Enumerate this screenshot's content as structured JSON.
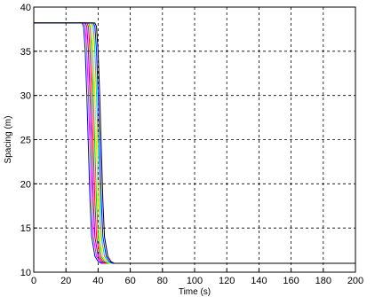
{
  "chart_data": {
    "type": "line",
    "title": "",
    "xlabel": "Time (s)",
    "ylabel": "Spacing (m)",
    "xlim": [
      0,
      200
    ],
    "ylim": [
      10,
      40
    ],
    "xticks": [
      0,
      20,
      40,
      60,
      80,
      100,
      120,
      140,
      160,
      180,
      200
    ],
    "yticks": [
      10,
      15,
      20,
      25,
      30,
      35,
      40
    ],
    "grid": true,
    "legend": "none",
    "series": [
      {
        "color": "#0000ff",
        "x": [
          0,
          30,
          31,
          32,
          33,
          34,
          35,
          36,
          38,
          40,
          42,
          44,
          200
        ],
        "y": [
          38.2,
          38.2,
          37.8,
          35,
          30,
          24,
          18,
          14,
          11.8,
          11.2,
          11,
          11,
          11
        ]
      },
      {
        "color": "#ff00ff",
        "x": [
          0,
          31,
          32,
          33,
          34,
          35,
          36,
          37,
          39,
          41,
          43,
          45,
          200
        ],
        "y": [
          38.2,
          38.2,
          37.8,
          35,
          30,
          24,
          18,
          14,
          11.8,
          11.2,
          11,
          11,
          11
        ]
      },
      {
        "color": "#800080",
        "x": [
          0,
          32,
          33,
          34,
          35,
          36,
          37,
          38,
          40,
          42,
          44,
          46,
          200
        ],
        "y": [
          38.2,
          38.2,
          37.8,
          35,
          30,
          24,
          18,
          14,
          11.8,
          11.2,
          11,
          11,
          11
        ]
      },
      {
        "color": "#ff0000",
        "x": [
          0,
          33,
          34,
          35,
          36,
          37,
          38,
          39,
          41,
          43,
          45,
          47,
          200
        ],
        "y": [
          38.2,
          38.2,
          37.8,
          35,
          30,
          24,
          18,
          14,
          11.8,
          11.2,
          11,
          11,
          11
        ]
      },
      {
        "color": "#00cc00",
        "x": [
          0,
          34,
          35,
          36,
          37,
          38,
          39,
          40,
          42,
          44,
          46,
          48,
          200
        ],
        "y": [
          38.2,
          38.2,
          37.8,
          35,
          30,
          24,
          18,
          14,
          11.8,
          11.2,
          11,
          11,
          11
        ]
      },
      {
        "color": "#ffcc00",
        "x": [
          0,
          35,
          36,
          37,
          38,
          39,
          40,
          41,
          43,
          45,
          47,
          49,
          200
        ],
        "y": [
          38.2,
          38.2,
          37.8,
          35,
          30,
          24,
          18,
          14,
          11.8,
          11.2,
          11,
          11,
          11
        ]
      },
      {
        "color": "#00cccc",
        "x": [
          0,
          36,
          37,
          38,
          39,
          40,
          41,
          42,
          44,
          46,
          48,
          50,
          200
        ],
        "y": [
          38.2,
          38.2,
          37.8,
          35,
          30,
          24,
          18,
          14,
          11.8,
          11.2,
          11,
          11,
          11
        ]
      },
      {
        "color": "#0000ff",
        "x": [
          0,
          37,
          38,
          39,
          40,
          41,
          42,
          43,
          45,
          47,
          49,
          52,
          200
        ],
        "y": [
          38.2,
          38.2,
          37.8,
          35,
          30,
          24,
          18,
          14,
          11.8,
          11.2,
          11,
          11,
          11
        ]
      },
      {
        "color": "#000000",
        "x": [
          0,
          38,
          39,
          40,
          41,
          42,
          43,
          44,
          46,
          48,
          50,
          56,
          200
        ],
        "y": [
          38.2,
          38.2,
          37.8,
          35,
          30,
          24,
          18,
          14,
          11.8,
          11.2,
          11,
          11,
          11
        ]
      }
    ]
  }
}
